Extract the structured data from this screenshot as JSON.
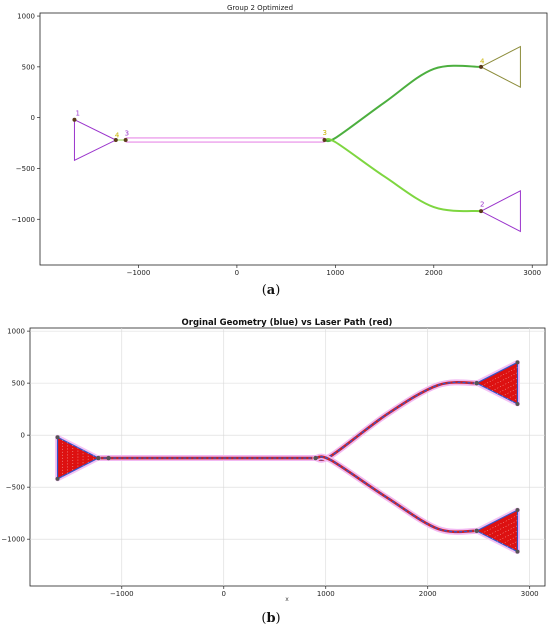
{
  "chart_data": [
    {
      "panel": "a",
      "type": "line",
      "title": "Group 2 Optimized",
      "caption": "a",
      "xlabel": "",
      "ylabel": "",
      "xlim": [
        -2000,
        3150
      ],
      "ylim": [
        -1450,
        1030
      ],
      "xticks": [
        -1000,
        0,
        1000,
        2000,
        3000
      ],
      "yticks": [
        1000,
        500,
        0,
        -500,
        -1000
      ],
      "grid": false,
      "triangles": [
        {
          "points": [
            [
              -1650,
              -20
            ],
            [
              -1650,
              -420
            ],
            [
              -1230,
              -220
            ]
          ],
          "color": "#9a33cc"
        },
        {
          "points": [
            [
              2480,
              500
            ],
            [
              2880,
              700
            ],
            [
              2880,
              300
            ]
          ],
          "color": "#8c8c3a"
        },
        {
          "points": [
            [
              2480,
              -920
            ],
            [
              2880,
              -720
            ],
            [
              2880,
              -1120
            ]
          ],
          "color": "#9a33cc"
        }
      ],
      "paths": [
        {
          "points": [
            [
              -1230,
              -220
            ],
            [
              -1130,
              -220
            ]
          ],
          "color": "#9bd85a"
        },
        {
          "points": [
            [
              -1130,
              -200
            ],
            [
              890,
              -200
            ]
          ],
          "color": "#e88be8"
        },
        {
          "points": [
            [
              -1130,
              -240
            ],
            [
              890,
              -240
            ]
          ],
          "color": "#e88be8"
        },
        {
          "points": [
            [
              890,
              -215
            ],
            [
              1000,
              -200
            ],
            [
              1500,
              150
            ],
            [
              2000,
              480
            ],
            [
              2480,
              500
            ]
          ],
          "color": "#4caf3f",
          "smooth": true
        },
        {
          "points": [
            [
              890,
              -225
            ],
            [
              1000,
              -240
            ],
            [
              1500,
              -580
            ],
            [
              2000,
              -880
            ],
            [
              2480,
              -920
            ]
          ],
          "color": "#7ed640",
          "smooth": true
        }
      ],
      "point_labels": [
        {
          "text": "1",
          "at": [
            -1640,
            -10
          ],
          "color": "#9a33cc"
        },
        {
          "text": "4",
          "at": [
            -1240,
            -225
          ],
          "color": "#c8b400"
        },
        {
          "text": "3",
          "at": [
            -1140,
            -205
          ],
          "color": "#9a33cc"
        },
        {
          "text": "3",
          "at": [
            870,
            -200
          ],
          "color": "#c8b400"
        },
        {
          "text": "4",
          "at": [
            2470,
            505
          ],
          "color": "#c8b400"
        },
        {
          "text": "2",
          "at": [
            2470,
            -905
          ],
          "color": "#9a33cc"
        }
      ]
    },
    {
      "panel": "b",
      "type": "line",
      "title": "Orginal Geometry (blue) vs Laser Path (red)",
      "caption": "b",
      "xlabel": "x",
      "ylabel": "",
      "xlim": [
        -1900,
        3150
      ],
      "ylim": [
        -1450,
        1030
      ],
      "xticks": [
        -1000,
        0,
        1000,
        2000,
        3000
      ],
      "yticks": [
        1000,
        500,
        0,
        -500,
        -1000
      ],
      "grid": true,
      "triangles": [
        {
          "points": [
            [
              -1630,
              -20
            ],
            [
              -1630,
              -420
            ],
            [
              -1230,
              -220
            ]
          ],
          "fill": "#dd1111",
          "edge": "#3355cc"
        },
        {
          "points": [
            [
              2480,
              500
            ],
            [
              2880,
              700
            ],
            [
              2880,
              300
            ]
          ],
          "fill": "#dd1111",
          "edge": "#3355cc"
        },
        {
          "points": [
            [
              2480,
              -920
            ],
            [
              2880,
              -720
            ],
            [
              2880,
              -1120
            ]
          ],
          "fill": "#dd1111",
          "edge": "#3355cc"
        }
      ],
      "paths": [
        {
          "points": [
            [
              -1230,
              -220
            ],
            [
              900,
              -220
            ]
          ],
          "color": "#3355cc"
        },
        {
          "points": [
            [
              900,
              -220
            ],
            [
              1050,
              -200
            ],
            [
              1600,
              200
            ],
            [
              2100,
              480
            ],
            [
              2480,
              500
            ]
          ],
          "color": "#3355cc",
          "smooth": true
        },
        {
          "points": [
            [
              900,
              -220
            ],
            [
              1050,
              -240
            ],
            [
              1600,
              -600
            ],
            [
              2100,
              -900
            ],
            [
              2480,
              -920
            ]
          ],
          "color": "#3355cc",
          "smooth": true
        }
      ]
    }
  ]
}
